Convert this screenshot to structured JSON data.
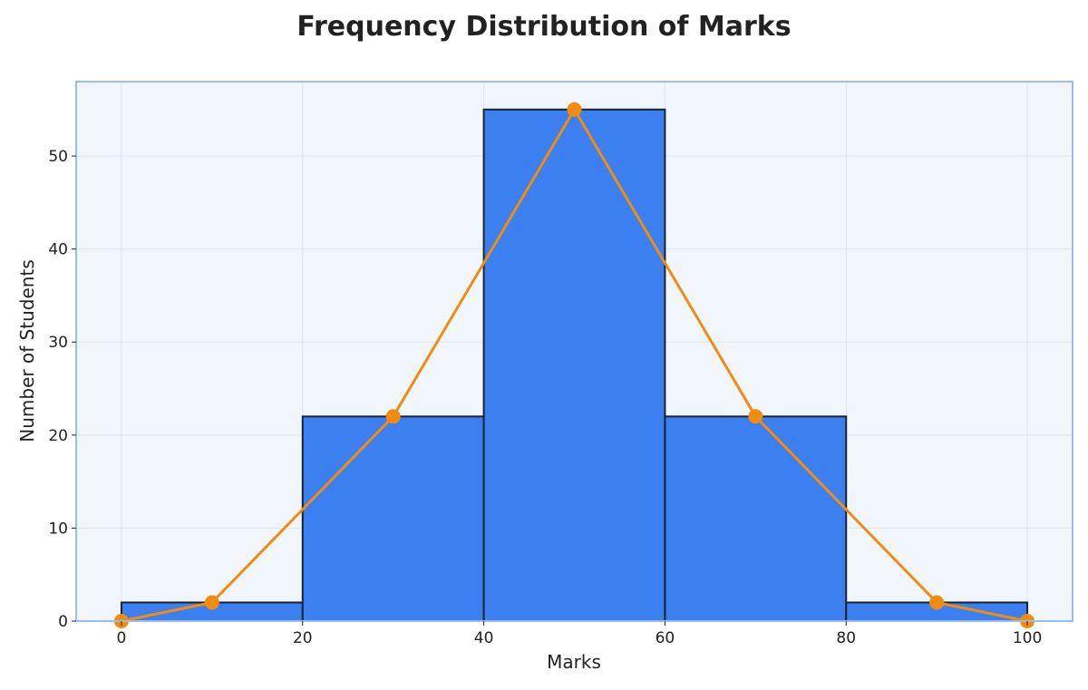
{
  "chart_data": {
    "type": "bar",
    "title": "Frequency Distribution of Marks",
    "xlabel": "Marks",
    "ylabel": "Number of Students",
    "bins": [
      {
        "start": 0,
        "end": 20,
        "value": 2
      },
      {
        "start": 20,
        "end": 40,
        "value": 22
      },
      {
        "start": 40,
        "end": 60,
        "value": 55
      },
      {
        "start": 60,
        "end": 80,
        "value": 22
      },
      {
        "start": 80,
        "end": 100,
        "value": 2
      }
    ],
    "polygon": {
      "x": [
        0,
        10,
        30,
        50,
        70,
        90,
        100
      ],
      "y": [
        0,
        2,
        22,
        55,
        22,
        2,
        0
      ]
    },
    "xlim": [
      -5,
      105
    ],
    "ylim": [
      0,
      58
    ],
    "xticks": [
      0,
      20,
      40,
      60,
      80,
      100
    ],
    "yticks": [
      0,
      10,
      20,
      30,
      40,
      50
    ],
    "grid": true,
    "colors": {
      "bar_fill": "#3b7ff0",
      "bar_edge": "#1a2332",
      "line": "#f28c0f",
      "plot_bg": "#f1f6fc",
      "frame": "#9bbcf0",
      "grid": "#dde6f4",
      "text": "#222222"
    }
  }
}
